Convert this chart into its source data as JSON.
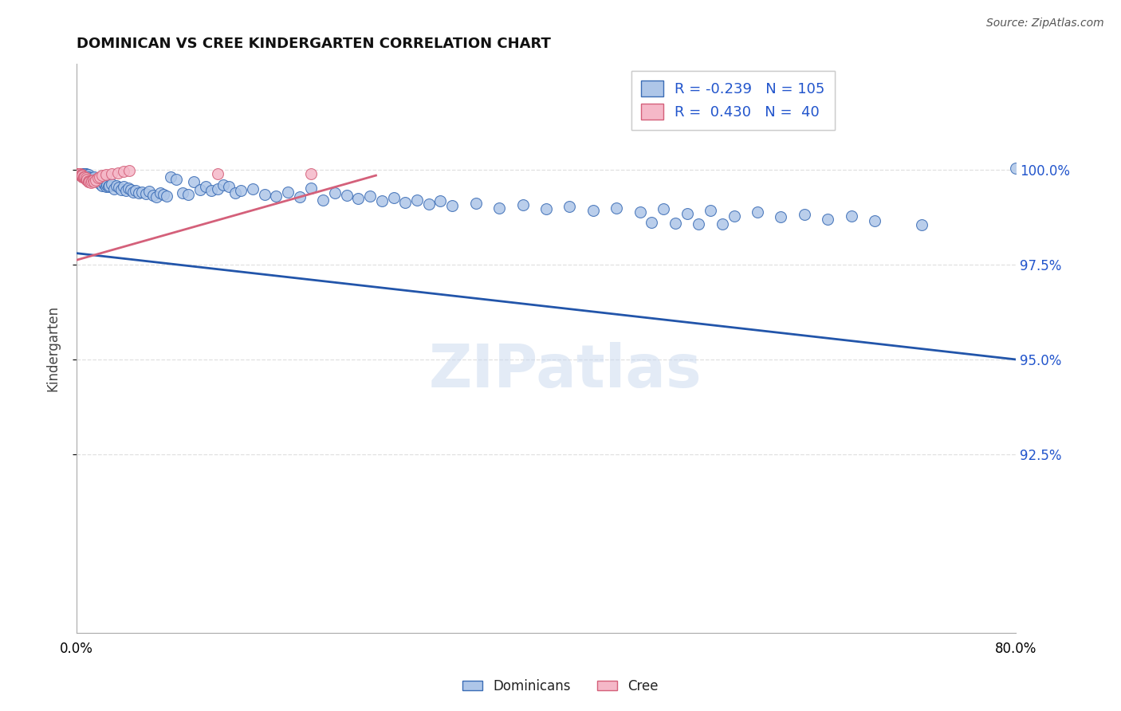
{
  "title": "DOMINICAN VS CREE KINDERGARTEN CORRELATION CHART",
  "source": "Source: ZipAtlas.com",
  "ylabel": "Kindergarten",
  "watermark": "ZIPatlas",
  "ytick_labels": [
    "92.5%",
    "95.0%",
    "97.5%",
    "100.0%"
  ],
  "ytick_values": [
    0.925,
    0.95,
    0.975,
    1.0
  ],
  "xmin": 0.0,
  "xmax": 0.8,
  "ymin": 0.878,
  "ymax": 1.028,
  "blue_face": "#aec6e8",
  "blue_edge": "#3a6cb5",
  "pink_face": "#f5b8c8",
  "pink_edge": "#d4607a",
  "blue_line": "#2255aa",
  "pink_line": "#d4607a",
  "legend_color": "#2255cc",
  "grid_color": "#e0e0e0",
  "R_blue": -0.239,
  "N_blue": 105,
  "R_pink": 0.43,
  "N_pink": 40,
  "blue_line_x": [
    0.0,
    0.8
  ],
  "blue_line_y": [
    0.978,
    0.95
  ],
  "pink_line_x": [
    0.0,
    0.255
  ],
  "pink_line_y": [
    0.9762,
    0.9985
  ],
  "blue_x": [
    0.003,
    0.004,
    0.005,
    0.005,
    0.006,
    0.007,
    0.007,
    0.008,
    0.009,
    0.01,
    0.01,
    0.011,
    0.012,
    0.013,
    0.014,
    0.015,
    0.015,
    0.016,
    0.017,
    0.018,
    0.019,
    0.02,
    0.021,
    0.022,
    0.023,
    0.024,
    0.025,
    0.026,
    0.027,
    0.028,
    0.03,
    0.032,
    0.034,
    0.036,
    0.038,
    0.04,
    0.042,
    0.044,
    0.046,
    0.048,
    0.05,
    0.053,
    0.056,
    0.059,
    0.062,
    0.065,
    0.068,
    0.071,
    0.074,
    0.077,
    0.08,
    0.085,
    0.09,
    0.095,
    0.1,
    0.105,
    0.11,
    0.115,
    0.12,
    0.125,
    0.13,
    0.135,
    0.14,
    0.15,
    0.16,
    0.17,
    0.18,
    0.19,
    0.2,
    0.21,
    0.22,
    0.23,
    0.24,
    0.25,
    0.26,
    0.27,
    0.28,
    0.29,
    0.3,
    0.31,
    0.32,
    0.34,
    0.36,
    0.38,
    0.4,
    0.42,
    0.44,
    0.46,
    0.48,
    0.5,
    0.52,
    0.54,
    0.56,
    0.58,
    0.6,
    0.62,
    0.64,
    0.66,
    0.68,
    0.49,
    0.51,
    0.53,
    0.55,
    0.72,
    0.8
  ],
  "blue_y": [
    0.999,
    0.999,
    0.999,
    0.999,
    0.999,
    0.999,
    0.999,
    0.999,
    0.9988,
    0.9988,
    0.9982,
    0.9975,
    0.9978,
    0.9976,
    0.9972,
    0.9978,
    0.998,
    0.9974,
    0.997,
    0.9968,
    0.9966,
    0.9965,
    0.996,
    0.9958,
    0.9965,
    0.9962,
    0.9956,
    0.996,
    0.9955,
    0.9958,
    0.9962,
    0.995,
    0.9958,
    0.9954,
    0.9948,
    0.9956,
    0.9945,
    0.9952,
    0.9948,
    0.9942,
    0.9946,
    0.9938,
    0.9942,
    0.9936,
    0.9944,
    0.9932,
    0.9928,
    0.9938,
    0.9934,
    0.993,
    0.998,
    0.9975,
    0.994,
    0.9935,
    0.9968,
    0.9948,
    0.9955,
    0.9945,
    0.995,
    0.996,
    0.9955,
    0.994,
    0.9945,
    0.995,
    0.9935,
    0.993,
    0.9942,
    0.9928,
    0.9952,
    0.992,
    0.9938,
    0.9932,
    0.9924,
    0.993,
    0.9918,
    0.9926,
    0.9914,
    0.992,
    0.991,
    0.9918,
    0.9906,
    0.9912,
    0.99,
    0.9908,
    0.9896,
    0.9904,
    0.9892,
    0.99,
    0.9888,
    0.9896,
    0.9884,
    0.9892,
    0.9878,
    0.9888,
    0.9876,
    0.9882,
    0.987,
    0.9878,
    0.9866,
    0.9862,
    0.986,
    0.9858,
    0.9856,
    0.9854,
    1.0005
  ],
  "pink_x": [
    0.001,
    0.001,
    0.002,
    0.002,
    0.002,
    0.003,
    0.003,
    0.003,
    0.004,
    0.004,
    0.004,
    0.005,
    0.005,
    0.005,
    0.006,
    0.006,
    0.007,
    0.007,
    0.008,
    0.008,
    0.009,
    0.009,
    0.01,
    0.01,
    0.011,
    0.012,
    0.013,
    0.014,
    0.015,
    0.016,
    0.018,
    0.02,
    0.022,
    0.025,
    0.03,
    0.035,
    0.04,
    0.045,
    0.12,
    0.2
  ],
  "pink_y": [
    0.999,
    0.999,
    0.999,
    0.999,
    0.9988,
    0.9988,
    0.999,
    0.999,
    0.9988,
    0.9988,
    0.9985,
    0.9982,
    0.9984,
    0.9986,
    0.998,
    0.9982,
    0.9978,
    0.998,
    0.9975,
    0.9978,
    0.9972,
    0.9974,
    0.997,
    0.9968,
    0.9968,
    0.9966,
    0.997,
    0.9972,
    0.9968,
    0.9972,
    0.9978,
    0.9982,
    0.9986,
    0.9988,
    0.999,
    0.9992,
    0.9995,
    0.9998,
    0.999,
    0.999
  ]
}
